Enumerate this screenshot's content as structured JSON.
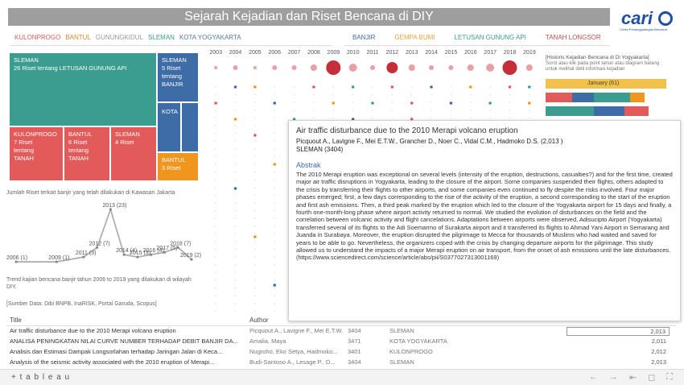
{
  "header": {
    "title": "Sejarah Kejadian dan Riset Bencana di DIY"
  },
  "logo": {
    "word": "cari",
    "sub": "Cerita Penanggulangan Bencana"
  },
  "filters": {
    "regions": [
      "KULONPROGO",
      "BANTUL",
      "GUNUNGKIDUL",
      "SLEMAN",
      "KOTA YOGYAKARTA"
    ],
    "categories": [
      "BANJIR",
      "GEMPA BUMI",
      "LETUSAN GUNUNG API",
      "TANAH LONGSOR"
    ]
  },
  "treemap": {
    "sleman_letusan": {
      "region": "SLEMAN",
      "text": "26 Riset tentang  LETUSAN GUNUNG API"
    },
    "sleman_banjir": {
      "region": "SLEMAN",
      "line1": "5 Riset",
      "line2": "tentang",
      "line3": "BANJIR"
    },
    "kota": {
      "region": "KOTA"
    },
    "kulonprogo": {
      "region": "KULONPROGO",
      "line1": "7 Riset",
      "line2": "tentang",
      "line3": "TANAH"
    },
    "bantul_tanah": {
      "region": "BANTUL",
      "line1": "6 Riset",
      "line2": "tentang",
      "line3": "TANAH"
    },
    "sleman_tanah": {
      "region": "SLEMAN",
      "line1": "4 Riset"
    },
    "bantul_banjir": {
      "region": "BANTUL",
      "line1": "3 Riset"
    }
  },
  "line_section": {
    "title": "Jumlah Riset terkait banjir yang telah dilakukan di Kawasan Jakarta",
    "note": "Trend kajian bencana banjir tahun  2006 to 2019   yang dilakukan di wilayah DIY.",
    "source": "[Sumber Data: Dibi BNPB, InaRISK, Portal Garuda, Scopus]"
  },
  "chart_data": {
    "type": "line",
    "x": [
      "2006",
      "2009",
      "2011",
      "2012",
      "2013",
      "2014",
      "2015",
      "2016",
      "2017",
      "2018",
      "2019"
    ],
    "values": [
      1,
      1,
      3,
      7,
      23,
      4,
      3,
      4,
      5,
      7,
      2
    ],
    "point_labels": [
      "2006 (1)",
      "2009 (1)",
      "2011 (3)",
      "2012 (7)",
      "2013 (23)",
      "2014 (4)",
      "2015 (3)",
      "2016 (4)",
      "2017 (5)",
      "2018 (7)",
      "2019 (2)"
    ],
    "color": "#b0b0b0"
  },
  "bubble": {
    "years": [
      "2003",
      "2004",
      "2005",
      "2006",
      "2007",
      "2008",
      "2009",
      "2010",
      "2011",
      "2012",
      "2013",
      "2014",
      "2015",
      "2016",
      "2017",
      "2018",
      "2019"
    ]
  },
  "history": {
    "title": "[Historis Kejadian Bencana di Di Yogyakarta]",
    "desc": "Sorot atau klik pada point tahun atau diagram batang untuk melihat detil informasi kejadian",
    "selected_label": "January  (61)"
  },
  "tooltip": {
    "title": "Air traffic disturbance due to the 2010 Merapi volcano eruption",
    "authors": "Picquout A., Lavigne F., Mei E.T.W., Grancher D., Noer C., Vidal C.M., Hadmoko D.S. (2,013 )",
    "location": "SLEMAN (3404)",
    "abstract_head": "Abstrak",
    "abstract": "The 2010 Merapi eruption was exceptional on several levels (intensity of the eruption, destructions, casualties?) and for the first time, created major air traffic disruptions in Yogyakarta, leading to the closure of the airport. Some companies suspended their flights, others adapted to the crisis by transferring their flights to other airports, and some companies even continued to fly despite the risks involved. Four major phases emerged; first, a few days corresponding to the rise of the activity of the eruption, a second corresponding to the start of the eruption and first ash emissions. Then, a third peak marked by the eruption which led to the closure of the Yogyakarta airport for 15 days and finally, a fourth one-month-long phase where airport activity returned to normal. We studied the evolution of disturbances on the field and the correlation between volcanic activity and flight cancelations. Adaptations between airports were observed, Adisucipto Airport (Yogyakarta) transferred several of its flights to the Adi Soemarmo of Surakarta airport and it transferred its flights to Ahmad Yani Airport in Semarang and Juanda in Surabaya. Moreover, the eruption disrupted the pilgrimage to Mecca for thousands of Muslims who had waited and saved for years to be able to go. Nevertheless, the organizers coped with the crisis by changing departure airports for the pilgrimage. This study allowed us to understand the impacts of a major Merapi eruption on air transport, from the onset of ash emissions until the late disturbances. (https://www.sciencedirect.com/science/article/abs/pii/S0377027313001169)"
  },
  "table": {
    "headers": {
      "title": "Title",
      "author": "Author"
    },
    "rows": [
      {
        "title": "Air traffic disturbance due to the 2010 Merapi volcano eruption",
        "author": "Picquout A., Lavigne F., Mei E.T.W.",
        "id": "3404",
        "loc": "SLEMAN",
        "year": "2,013"
      },
      {
        "title": "ANALISA PENINGKATAN NILAI CURVE NUMBER TERHADAP DEBIT BANJIR DA...",
        "author": "Amalia, Maya",
        "id": "3471",
        "loc": "KOTA YOGYAKARTA",
        "year": "2,011"
      },
      {
        "title": "Analisis dan Estimasi Dampak Longsorlahan terhadap Jaringan Jalan di Keca...",
        "author": "Nugroho, Eko Setya, Hadmoko...",
        "id": "3401",
        "loc": "KULONPROGO",
        "year": "2,012"
      },
      {
        "title": "Analysis of the seismic activity associated with the 2010 eruption of Merapi...",
        "author": "Budi-Santoso A., Lesage P., D...",
        "id": "3404",
        "loc": "SLEMAN",
        "year": "2,013"
      }
    ]
  },
  "footer": {
    "brand": "+ t a b l e a u"
  }
}
